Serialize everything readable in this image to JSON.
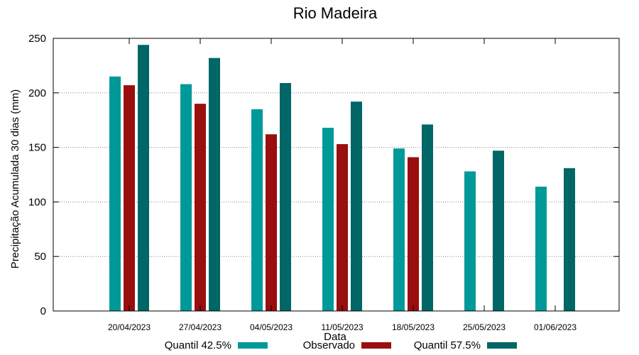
{
  "chart_data": {
    "type": "bar",
    "title": "Rio Madeira",
    "xlabel": "Data",
    "ylabel": "Precipitação Acumulada 30 dias (mm)",
    "ylim": [
      0,
      250
    ],
    "yticks": [
      0,
      50,
      100,
      150,
      200,
      250
    ],
    "grid": "horizontal dotted",
    "legend_position": "bottom",
    "categories": [
      "20/04/2023",
      "27/04/2023",
      "04/05/2023",
      "11/05/2023",
      "18/05/2023",
      "25/05/2023",
      "01/06/2023"
    ],
    "series": [
      {
        "name": "Quantil 42.5%",
        "color": "#009999",
        "values": [
          215,
          208,
          185,
          168,
          149,
          128,
          114
        ]
      },
      {
        "name": "Observado",
        "color": "#990f0f",
        "values": [
          207,
          190,
          162,
          153,
          141,
          null,
          null
        ]
      },
      {
        "name": "Quantil 57.5%",
        "color": "#006666",
        "values": [
          244,
          232,
          209,
          192,
          171,
          147,
          131
        ]
      }
    ]
  }
}
